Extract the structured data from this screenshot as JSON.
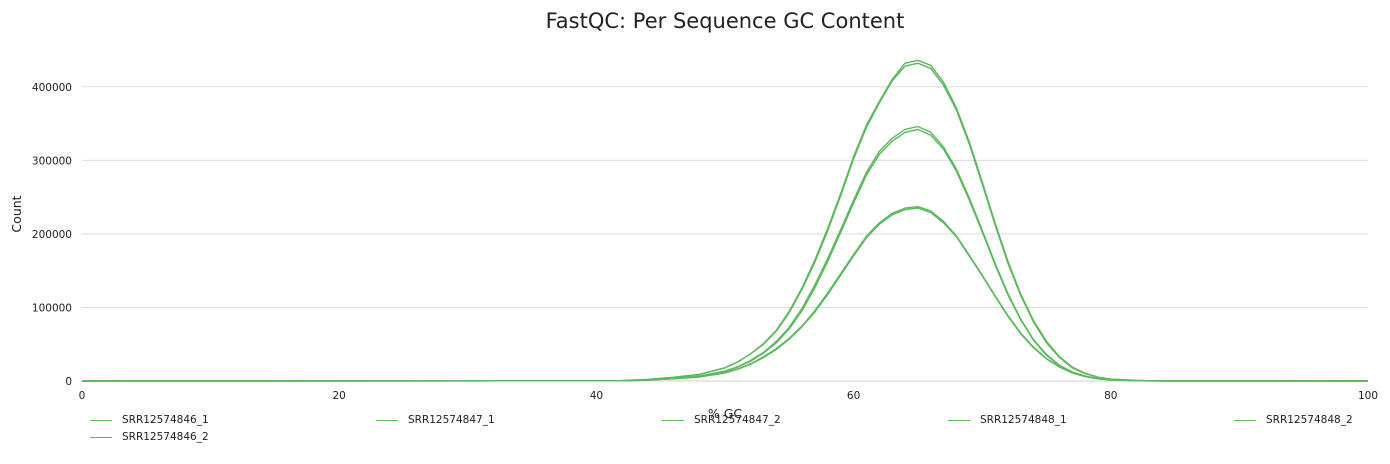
{
  "chart_data": {
    "type": "line",
    "title": "FastQC: Per Sequence GC Content",
    "xlabel": "% GC",
    "ylabel": "Count",
    "xlim": [
      0,
      100
    ],
    "ylim": [
      0,
      450000
    ],
    "x_ticks": [
      "0",
      "20",
      "40",
      "60",
      "80",
      "100"
    ],
    "y_ticks": [
      "0",
      "100000",
      "200000",
      "300000",
      "400000"
    ],
    "grid": "horizontal",
    "legend_position": "bottom",
    "line_color": "#5cb85c",
    "x": [
      42,
      44,
      46,
      48,
      50,
      51,
      52,
      53,
      54,
      55,
      56,
      57,
      58,
      59,
      60,
      61,
      62,
      63,
      64,
      65,
      66,
      67,
      68,
      69,
      70,
      71,
      72,
      73,
      74,
      75,
      76,
      77,
      78,
      79,
      80,
      82,
      84
    ],
    "series": [
      {
        "name": "SRR12574846_1",
        "values": [
          500,
          2000,
          5000,
          9000,
          18000,
          26000,
          37000,
          50000,
          68000,
          93000,
          125000,
          162000,
          205000,
          252000,
          302000,
          345000,
          378000,
          408000,
          428000,
          432000,
          425000,
          402000,
          368000,
          322000,
          268000,
          212000,
          160000,
          116000,
          80000,
          52000,
          32000,
          18000,
          10000,
          5000,
          2500,
          700,
          200
        ]
      },
      {
        "name": "SRR12574846_2",
        "values": [
          500,
          2000,
          5000,
          9000,
          18000,
          26000,
          37000,
          51000,
          69000,
          95000,
          127000,
          165000,
          208000,
          255000,
          305000,
          348000,
          380000,
          410000,
          432000,
          436000,
          429000,
          406000,
          371000,
          325000,
          271000,
          215000,
          163000,
          118000,
          82000,
          54000,
          33000,
          19000,
          10500,
          5200,
          2600,
          700,
          200
        ]
      },
      {
        "name": "SRR12574847_1",
        "values": [
          300,
          1500,
          3500,
          6500,
          13000,
          19000,
          27000,
          38000,
          52000,
          71000,
          96000,
          127000,
          163000,
          202000,
          242000,
          280000,
          308000,
          326000,
          338000,
          342000,
          334000,
          315000,
          285000,
          246000,
          203000,
          158000,
          117000,
          83000,
          55000,
          35000,
          21000,
          12000,
          6500,
          3200,
          1600,
          400,
          100
        ]
      },
      {
        "name": "SRR12574847_2",
        "values": [
          300,
          1500,
          3600,
          6700,
          13500,
          19500,
          28000,
          39000,
          54000,
          73000,
          99000,
          131000,
          167000,
          206000,
          246000,
          284000,
          312000,
          330000,
          342000,
          346000,
          338000,
          318000,
          288000,
          249000,
          205000,
          160000,
          119000,
          84000,
          56000,
          36000,
          21500,
          12300,
          6700,
          3300,
          1700,
          400,
          100
        ]
      },
      {
        "name": "SRR12574848_1",
        "values": [
          300,
          1200,
          3000,
          5500,
          11000,
          16000,
          23000,
          32000,
          43000,
          57000,
          74000,
          94000,
          118000,
          144000,
          170000,
          195000,
          213000,
          226000,
          233000,
          235000,
          229000,
          215000,
          196000,
          170000,
          143000,
          115000,
          88000,
          64000,
          45000,
          30000,
          19000,
          11000,
          6000,
          3000,
          1500,
          400,
          100
        ]
      },
      {
        "name": "SRR12574848_2",
        "values": [
          300,
          1200,
          3100,
          5700,
          11500,
          16500,
          23500,
          33000,
          44000,
          58000,
          75000,
          96000,
          120000,
          146000,
          172000,
          197000,
          215000,
          228000,
          235000,
          237000,
          231000,
          217000,
          197000,
          171000,
          144000,
          116000,
          89000,
          65000,
          46000,
          30500,
          19500,
          11200,
          6100,
          3100,
          1500,
          400,
          100
        ]
      }
    ]
  },
  "legend_order": [
    "SRR12574846_1",
    "SRR12574847_1",
    "SRR12574847_2",
    "SRR12574848_1",
    "SRR12574848_2",
    "SRR12574846_2"
  ]
}
